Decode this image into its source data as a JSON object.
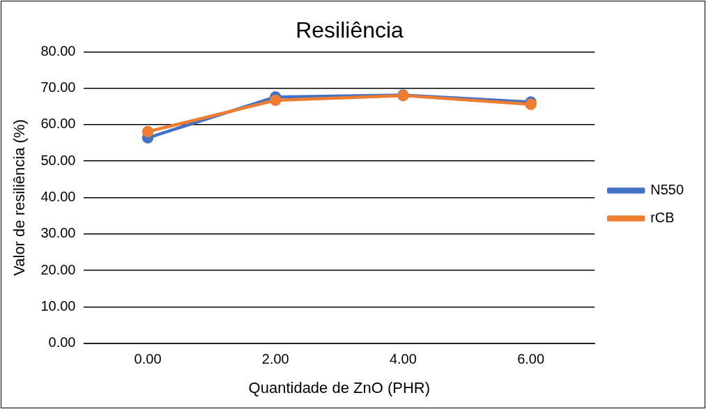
{
  "chart_data": {
    "type": "line",
    "title": "Resiliência",
    "xlabel": "Quantidade de ZnO (PHR)",
    "ylabel": "Valor de resiliência (%)",
    "categories": [
      "0.00",
      "2.00",
      "4.00",
      "6.00"
    ],
    "series": [
      {
        "name": "N550",
        "color": "#4472c4",
        "values": [
          56.4,
          67.6,
          68.1,
          66.2
        ]
      },
      {
        "name": "rCB",
        "color": "#ed7d31",
        "values": [
          58.1,
          66.7,
          68.0,
          65.6
        ]
      }
    ],
    "ylim": [
      0,
      80
    ],
    "yticks": [
      {
        "value": 0,
        "label": "0.00"
      },
      {
        "value": 10,
        "label": "10.00"
      },
      {
        "value": 20,
        "label": "20.00"
      },
      {
        "value": 30,
        "label": "30.00"
      },
      {
        "value": 40,
        "label": "40.00"
      },
      {
        "value": 50,
        "label": "50.00"
      },
      {
        "value": 60,
        "label": "60.00"
      },
      {
        "value": 70,
        "label": "70.00"
      },
      {
        "value": 80,
        "label": "80.00"
      }
    ],
    "grid": "y",
    "legend": "right",
    "marker": "circle",
    "line_style": "solid"
  }
}
